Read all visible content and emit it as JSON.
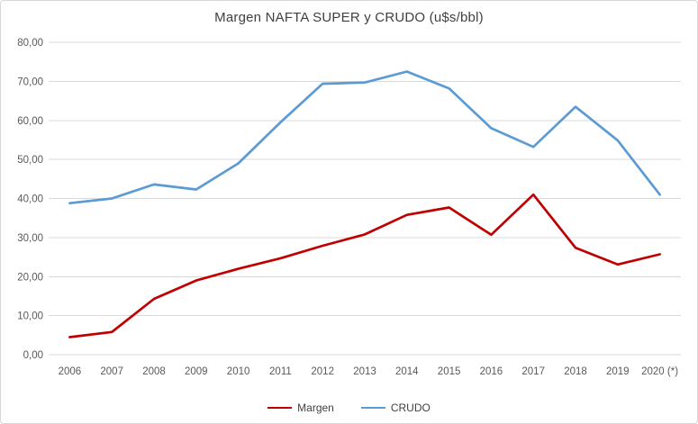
{
  "chart_data": {
    "type": "line",
    "title": "Margen NAFTA SUPER y CRUDO (u$s/bbl)",
    "categories": [
      "2006",
      "2007",
      "2008",
      "2009",
      "2010",
      "2011",
      "2012",
      "2013",
      "2014",
      "2015",
      "2016",
      "2017",
      "2018",
      "2019",
      "2020 (*)"
    ],
    "series": [
      {
        "name": "Margen",
        "color": "#c00000",
        "values": [
          4.5,
          5.8,
          14.3,
          19.0,
          22.0,
          24.7,
          27.9,
          30.8,
          35.8,
          37.7,
          30.7,
          41.0,
          27.4,
          23.1,
          25.7
        ]
      },
      {
        "name": "CRUDO",
        "color": "#5b9bd5",
        "values": [
          38.8,
          40.0,
          43.6,
          42.3,
          49.0,
          59.5,
          69.4,
          69.7,
          72.5,
          68.2,
          58.0,
          53.2,
          63.5,
          54.9,
          41.0
        ]
      }
    ],
    "ylim": [
      0,
      80
    ],
    "y_tick_step": 10,
    "y_tick_labels": [
      "0,00",
      "10,00",
      "20,00",
      "30,00",
      "40,00",
      "50,00",
      "60,00",
      "70,00",
      "80,00"
    ],
    "grid": true,
    "legend_position": "bottom",
    "colors": {
      "grid_line": "#d9d9d9",
      "axis_text": "#595959",
      "title_text": "#404040",
      "background": "#ffffff",
      "border": "#d7d7d7"
    }
  }
}
